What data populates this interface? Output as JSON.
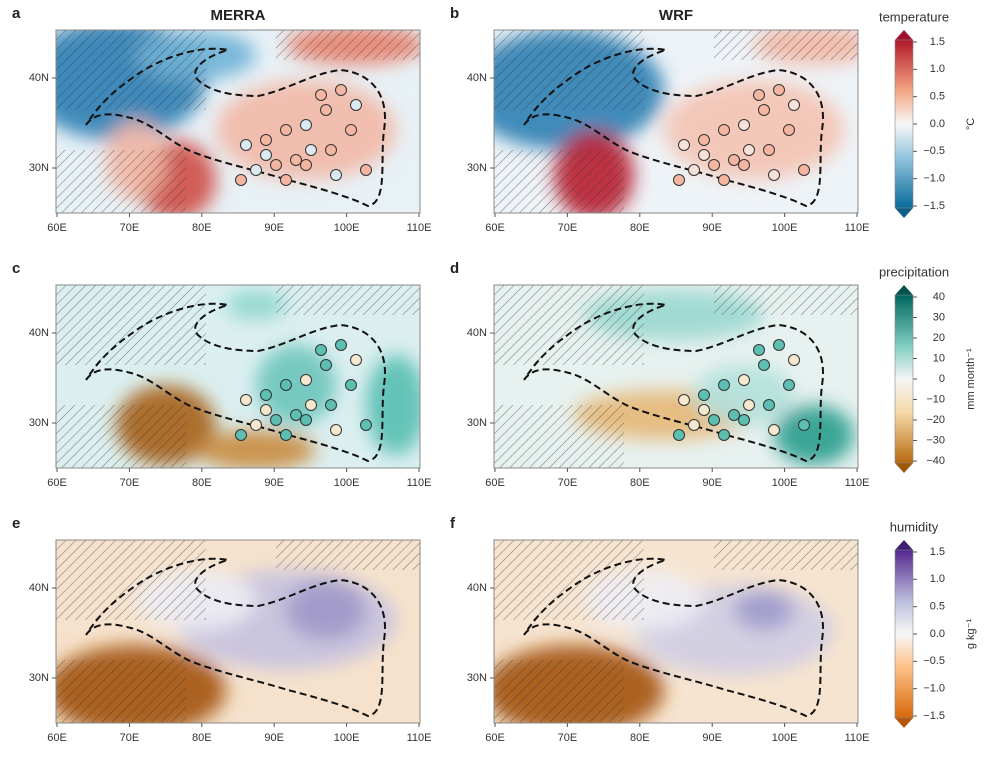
{
  "panels": [
    {
      "letter": "a",
      "title": "MERRA"
    },
    {
      "letter": "b",
      "title": "WRF"
    },
    {
      "letter": "c"
    },
    {
      "letter": "d"
    },
    {
      "letter": "e"
    },
    {
      "letter": "f"
    }
  ],
  "lon_ticks": [
    "60E",
    "70E",
    "80E",
    "90E",
    "100E",
    "110E"
  ],
  "lat_ticks": [
    "40N",
    "30N"
  ],
  "colorbars": [
    {
      "title": "temperature",
      "unit": "°C",
      "ticks": [
        "1.5",
        "1.0",
        "0.5",
        "0.0",
        "−0.5",
        "−1.0",
        "−1.5"
      ]
    },
    {
      "title": "precipitation",
      "unit": "mm month⁻¹",
      "ticks": [
        "40",
        "30",
        "20",
        "10",
        "0",
        "−10",
        "−20",
        "−30",
        "−40"
      ]
    },
    {
      "title": "humidity",
      "unit": "g kg⁻¹",
      "ticks": [
        "1.5",
        "1.0",
        "0.5",
        "0.0",
        "−0.5",
        "−1.0",
        "−1.5"
      ]
    }
  ]
}
